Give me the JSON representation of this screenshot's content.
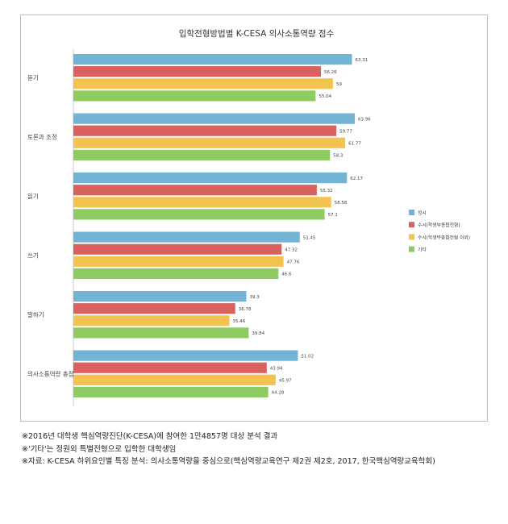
{
  "chart_data": {
    "type": "bar",
    "orientation": "horizontal",
    "title": "입학전형방법별 K-CESA 의사소통역량 점수",
    "categories": [
      "듣기",
      "토론과 조정",
      "읽기",
      "쓰기",
      "말하기",
      "의사소통역량 총점"
    ],
    "series": [
      {
        "name": "정시",
        "color": "#73b4d4",
        "values": [
          63.31,
          63.96,
          62.17,
          51.45,
          39.3,
          51.02
        ]
      },
      {
        "name": "수시(학생부종합전형)",
        "color": "#d9625f",
        "values": [
          56.26,
          59.77,
          55.32,
          47.32,
          36.78,
          43.94
        ]
      },
      {
        "name": "수시(학생부종합전형 이외)",
        "color": "#f2c44f",
        "values": [
          59,
          61.77,
          58.58,
          47.76,
          35.46,
          45.97
        ]
      },
      {
        "name": "기타",
        "color": "#8fcb63",
        "values": [
          55.04,
          58.3,
          57.1,
          46.6,
          39.84,
          44.28
        ]
      }
    ],
    "value_labels": [
      [
        "63.31",
        "63.96",
        "62.17",
        "51.45",
        "39.3",
        "51.02"
      ],
      [
        "56.26",
        "59.77",
        "55.32",
        "47.32",
        "36.78",
        "43.94"
      ],
      [
        "59",
        "61.77",
        "58.58",
        "47.76",
        "35.46",
        "45.97"
      ],
      [
        "55.04",
        "58.3",
        "57.1",
        "46.6",
        "39.84",
        "44.28"
      ]
    ],
    "xlim": [
      0,
      70
    ],
    "grid": false,
    "legend_position": "right"
  },
  "notes": [
    "※2016년 대학생 핵심역량진단(K-CESA)에 참여한 1만4857명 대상 분석 결과",
    "※'기타'는 정원외 특별전형으로 입학한 대학생임",
    "※자료: K-CESA 하위요인별 특징 분석: 의사소통역량을 중심으로(핵심역량교육연구 제2권 제2호, 2017, 한국핵심역량교육학회)"
  ]
}
